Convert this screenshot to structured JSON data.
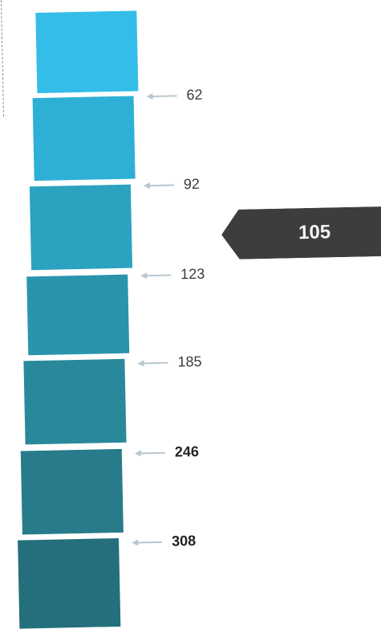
{
  "swatches": [
    {
      "color": "#33bde8"
    },
    {
      "color": "#2eb0d6"
    },
    {
      "color": "#2ba2c0"
    },
    {
      "color": "#2a94ad"
    },
    {
      "color": "#2a889b"
    },
    {
      "color": "#287b8a"
    },
    {
      "color": "#246f7b"
    }
  ],
  "markers": [
    {
      "value": "62"
    },
    {
      "value": "92"
    },
    {
      "value": "123"
    },
    {
      "value": "185"
    },
    {
      "value": "246"
    },
    {
      "value": "308"
    }
  ],
  "indicator": {
    "value": "105",
    "color": "#3d3d3f"
  }
}
